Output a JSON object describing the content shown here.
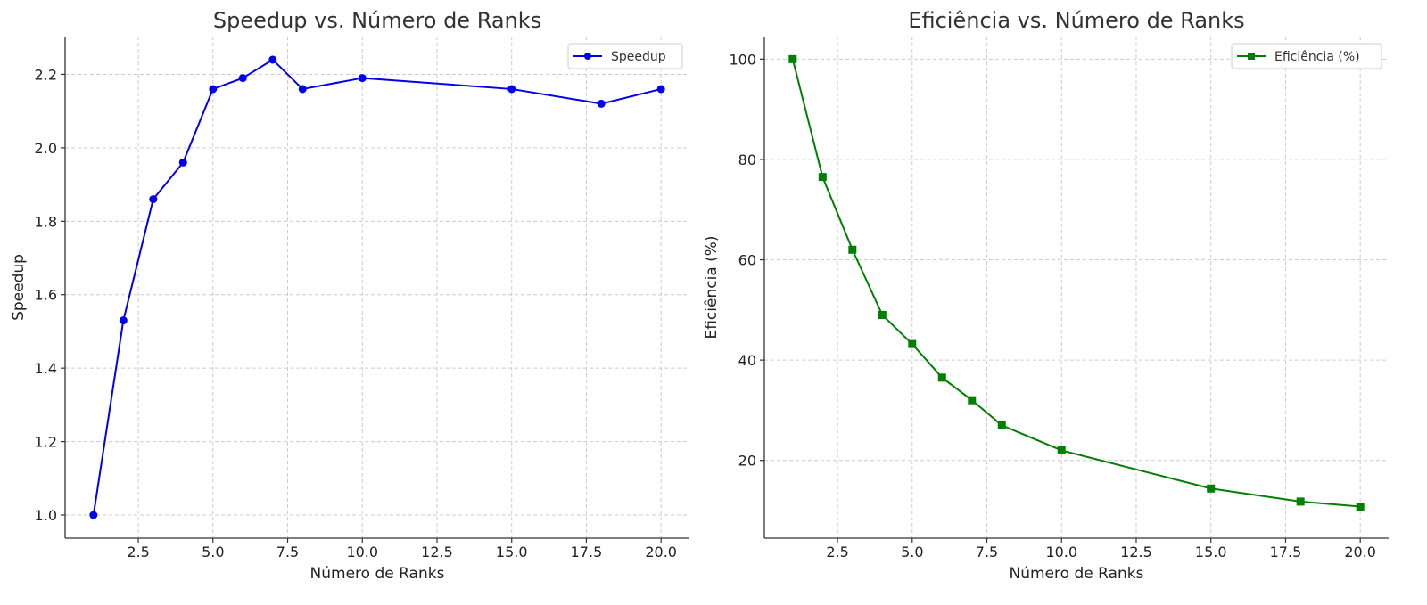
{
  "chart_data": [
    {
      "type": "line",
      "title": "Speedup vs. Número de Ranks",
      "xlabel": "Número de Ranks",
      "ylabel": "Speedup",
      "xlim": [
        0.05,
        20.95
      ],
      "ylim": [
        0.937,
        2.303
      ],
      "xticks": [
        2.5,
        5.0,
        7.5,
        10.0,
        12.5,
        15.0,
        17.5,
        20.0
      ],
      "xtick_labels": [
        "2.5",
        "5.0",
        "7.5",
        "10.0",
        "12.5",
        "15.0",
        "17.5",
        "20.0"
      ],
      "yticks": [
        1.0,
        1.2,
        1.4,
        1.6,
        1.8,
        2.0,
        2.2
      ],
      "ytick_labels": [
        "1.0",
        "1.2",
        "1.4",
        "1.6",
        "1.8",
        "2.0",
        "2.2"
      ],
      "grid": true,
      "legend_position": "top-right",
      "series": [
        {
          "name": "Speedup",
          "color": "#0000ee",
          "marker": "circle",
          "x": [
            1,
            2,
            3,
            4,
            5,
            6,
            7,
            8,
            10,
            15,
            18,
            20
          ],
          "y": [
            1.0,
            1.53,
            1.86,
            1.96,
            2.16,
            2.19,
            2.24,
            2.16,
            2.19,
            2.16,
            2.12,
            2.16
          ]
        }
      ]
    },
    {
      "type": "line",
      "title": "Eficiência vs. Número de Ranks",
      "xlabel": "Número de Ranks",
      "ylabel": "Eficiência (%)",
      "xlim": [
        0.05,
        20.95
      ],
      "ylim": [
        4.5,
        104.5
      ],
      "xticks": [
        2.5,
        5.0,
        7.5,
        10.0,
        12.5,
        15.0,
        17.5,
        20.0
      ],
      "xtick_labels": [
        "2.5",
        "5.0",
        "7.5",
        "10.0",
        "12.5",
        "15.0",
        "17.5",
        "20.0"
      ],
      "yticks": [
        20,
        40,
        60,
        80,
        100
      ],
      "ytick_labels": [
        "20",
        "40",
        "60",
        "80",
        "100"
      ],
      "grid": true,
      "legend_position": "top-right",
      "series": [
        {
          "name": "Eficiência (%)",
          "color": "#007f00",
          "marker": "square",
          "x": [
            1,
            2,
            3,
            4,
            5,
            6,
            7,
            8,
            10,
            15,
            18,
            20
          ],
          "y": [
            100,
            76.5,
            62,
            49,
            43.2,
            36.5,
            32,
            27,
            22,
            14.4,
            11.8,
            10.8
          ]
        }
      ]
    }
  ]
}
